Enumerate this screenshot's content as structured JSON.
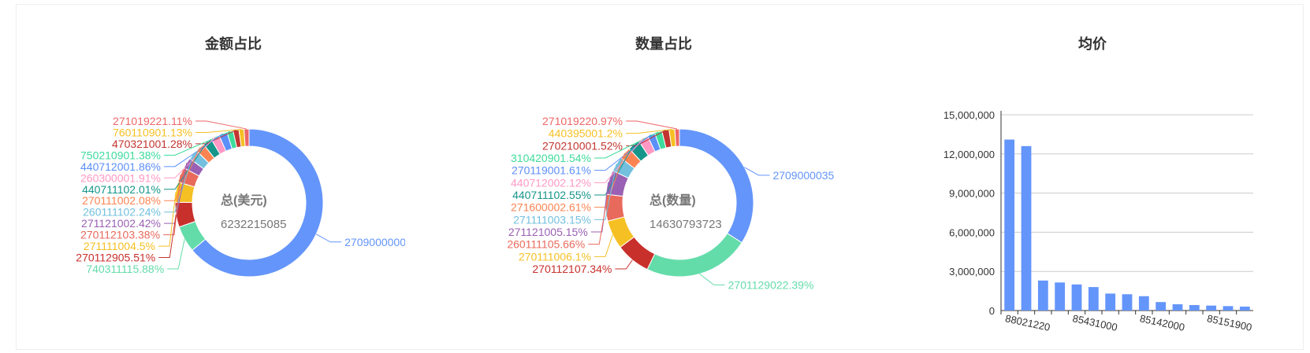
{
  "chart_data": [
    {
      "type": "pie",
      "title": "金额占比",
      "center_title": "总(美元)",
      "center_value": "6232215085",
      "slices": [
        {
          "label": "2709000000",
          "pct": 65.0,
          "color": "#6495fa"
        },
        {
          "label": "740311115.88%",
          "pct": 5.88,
          "color": "#64dcaa"
        },
        {
          "label": "270112905.51%",
          "pct": 5.51,
          "color": "#c8302c"
        },
        {
          "label": "271111004.5%",
          "pct": 4.5,
          "color": "#f5c024"
        },
        {
          "label": "270112103.38%",
          "pct": 3.38,
          "color": "#e86a5c"
        },
        {
          "label": "271121002.42%",
          "pct": 2.42,
          "color": "#9a60b4"
        },
        {
          "label": "260111102.24%",
          "pct": 2.24,
          "color": "#73c0de"
        },
        {
          "label": "270111002.08%",
          "pct": 2.08,
          "color": "#fc8452"
        },
        {
          "label": "440711102.01%",
          "pct": 2.01,
          "color": "#16968a"
        },
        {
          "label": "260300001.91%",
          "pct": 1.91,
          "color": "#ff99c3"
        },
        {
          "label": "440712001.86%",
          "pct": 1.86,
          "color": "#5b8ff9"
        },
        {
          "label": "750210901.38%",
          "pct": 1.38,
          "color": "#3ddb9b"
        },
        {
          "label": "470321001.28%",
          "pct": 1.28,
          "color": "#c23531"
        },
        {
          "label": "760110901.13%",
          "pct": 1.13,
          "color": "#f5c024"
        },
        {
          "label": "271019221.11%",
          "pct": 1.11,
          "color": "#ee6666"
        }
      ]
    },
    {
      "type": "pie",
      "title": "数量占比",
      "center_title": "总(数量)",
      "center_value": "14630793723",
      "slices": [
        {
          "label": "2709000035",
          "pct": 33.0,
          "color": "#6495fa"
        },
        {
          "label": "2701129022.39%",
          "pct": 22.39,
          "color": "#64dcaa"
        },
        {
          "label": "270112107.34%",
          "pct": 7.34,
          "color": "#c8302c"
        },
        {
          "label": "270111006.1%",
          "pct": 6.1,
          "color": "#f5c024"
        },
        {
          "label": "260111105.66%",
          "pct": 5.66,
          "color": "#e86a5c"
        },
        {
          "label": "271121005.15%",
          "pct": 5.15,
          "color": "#9a60b4"
        },
        {
          "label": "271111003.15%",
          "pct": 3.15,
          "color": "#73c0de"
        },
        {
          "label": "271600002.61%",
          "pct": 2.61,
          "color": "#fc8452"
        },
        {
          "label": "440711102.55%",
          "pct": 2.55,
          "color": "#16968a"
        },
        {
          "label": "440712002.12%",
          "pct": 2.12,
          "color": "#ff99c3"
        },
        {
          "label": "270119001.61%",
          "pct": 1.61,
          "color": "#5b8ff9"
        },
        {
          "label": "310420901.54%",
          "pct": 1.54,
          "color": "#3ddb9b"
        },
        {
          "label": "270210001.52%",
          "pct": 1.52,
          "color": "#c23531"
        },
        {
          "label": "440395001.2%",
          "pct": 1.2,
          "color": "#f5c024"
        },
        {
          "label": "271019220.97%",
          "pct": 0.97,
          "color": "#ee6666"
        }
      ]
    },
    {
      "type": "bar",
      "title": "均价",
      "color": "#6495fa",
      "ylim": [
        0,
        15000000
      ],
      "yticks": [
        "0",
        "3,000,000",
        "6,000,000",
        "9,000,000",
        "12,000,000",
        "15,000,000"
      ],
      "xtick_labels": [
        {
          "index": 0,
          "text": "88021220"
        },
        {
          "index": 4,
          "text": "85431000"
        },
        {
          "index": 8,
          "text": "85142000"
        },
        {
          "index": 12,
          "text": "85151900"
        }
      ],
      "values": [
        13100000,
        12600000,
        2300000,
        2150000,
        2000000,
        1800000,
        1300000,
        1250000,
        1100000,
        650000,
        480000,
        420000,
        380000,
        340000,
        300000
      ]
    }
  ]
}
